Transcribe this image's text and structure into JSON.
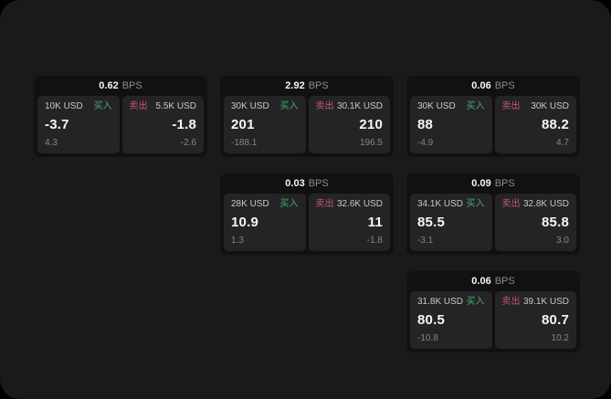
{
  "labels": {
    "bps_unit": "BPS",
    "buy": "买入",
    "sell": "卖出"
  },
  "colors": {
    "page_background": "#000000",
    "panel_background": "#1a1a1c",
    "card_background": "#111113",
    "tile_background": "#242427",
    "buy_accent": "#43ad68",
    "sell_accent": "#c9566b",
    "value_text": "#f7f7f7",
    "muted_text": "#85858a"
  },
  "cards": [
    {
      "bps": "0.62",
      "buy": {
        "amount": "10K USD",
        "value": "-3.7",
        "delta": "4.3"
      },
      "sell": {
        "amount": "5.5K USD",
        "value": "-1.8",
        "delta": "-2.6"
      }
    },
    {
      "bps": "2.92",
      "buy": {
        "amount": "30K USD",
        "value": "201",
        "delta": "-188.1"
      },
      "sell": {
        "amount": "30.1K USD",
        "value": "210",
        "delta": "196.5"
      }
    },
    {
      "bps": "0.06",
      "buy": {
        "amount": "30K USD",
        "value": "88",
        "delta": "-4.9"
      },
      "sell": {
        "amount": "30K USD",
        "value": "88.2",
        "delta": "4.7"
      }
    },
    {
      "bps": "0.03",
      "buy": {
        "amount": "28K USD",
        "value": "10.9",
        "delta": "1.3"
      },
      "sell": {
        "amount": "32.6K USD",
        "value": "11",
        "delta": "-1.8"
      }
    },
    {
      "bps": "0.09",
      "buy": {
        "amount": "34.1K USD",
        "value": "85.5",
        "delta": "-3.1"
      },
      "sell": {
        "amount": "32.8K USD",
        "value": "85.8",
        "delta": "3.0"
      }
    },
    {
      "bps": "0.06",
      "buy": {
        "amount": "31.8K USD",
        "value": "80.5",
        "delta": "-10.8"
      },
      "sell": {
        "amount": "39.1K USD",
        "value": "80.7",
        "delta": "10.2"
      }
    }
  ]
}
